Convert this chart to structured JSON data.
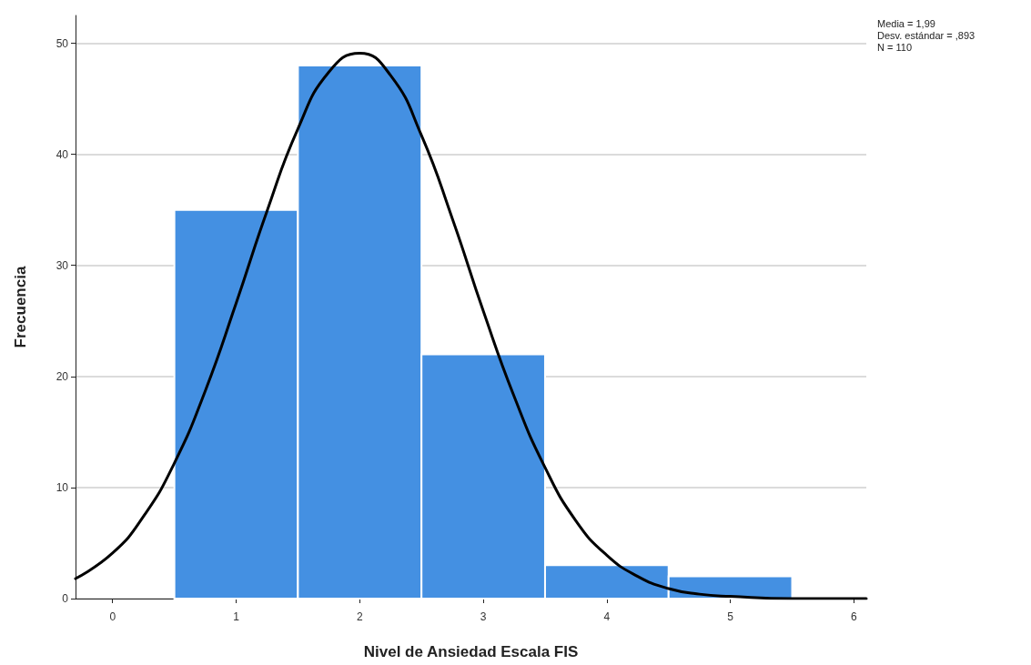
{
  "chart_data": {
    "type": "histogram",
    "xlabel": "Nivel de Ansiedad Escala FIS",
    "ylabel": "Frecuencia",
    "series": [
      {
        "bins": [
          0.5,
          1.5,
          2.5,
          3.5,
          4.5,
          5.5
        ],
        "values": [
          35,
          48,
          22,
          3,
          2
        ],
        "color": "#4490e2"
      },
      {
        "type": "line",
        "color": "#000000",
        "x": [
          -0.3,
          0,
          0.25,
          0.5,
          0.75,
          1,
          1.25,
          1.5,
          1.75,
          2,
          2.25,
          2.5,
          2.75,
          3,
          3.25,
          3.5,
          3.75,
          4,
          4.25,
          4.5,
          4.75,
          5,
          5.5,
          6.1
        ],
        "values": [
          1.8,
          4.1,
          7.4,
          12.2,
          18.7,
          26.6,
          34.9,
          42.3,
          47.4,
          49.1,
          47.1,
          41.7,
          34.2,
          25.9,
          18.2,
          11.8,
          7.0,
          3.9,
          2.0,
          0.9,
          0.4,
          0.2,
          0,
          0
        ]
      }
    ],
    "xlim": [
      -0.3,
      6.1
    ],
    "xticks": [
      0,
      1,
      2,
      3,
      4,
      5,
      6
    ],
    "ylim": [
      0,
      52.5
    ],
    "yticks": [
      0,
      10,
      20,
      30,
      40,
      50
    ],
    "grid": "y",
    "marker": "none",
    "line_style": "solid",
    "annotations": [
      "Media = 1,99",
      "Desv. estándar = ,893",
      "N = 110"
    ]
  }
}
